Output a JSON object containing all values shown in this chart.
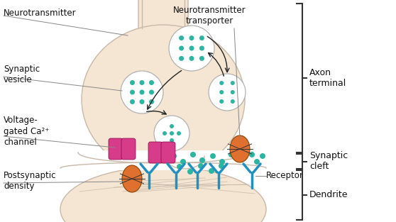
{
  "bg_color": "#ffffff",
  "axon_fill": "#f5e6d3",
  "axon_stroke": "#c8b8a8",
  "vesicle_fill": "#ffffff",
  "vesicle_stroke": "#aaaaaa",
  "dot_color": "#2cb5a0",
  "channel_color": "#d63c8a",
  "transporter_color": "#e07030",
  "receptor_color": "#2090c0",
  "arrow_color": "#222222",
  "label_color": "#111111",
  "bracket_color": "#333333",
  "line_color": "#bbbbbb",
  "labels": {
    "neurotransmitter": "Neurotransmitter",
    "synaptic_vesicle": "Synaptic\nvesicle",
    "voltage_gated": "Voltage-\ngated Ca²⁺\nchannel",
    "postsynaptic": "Postsynaptic\ndensity",
    "nt_transporter": "Neurotransmitter\ntransporter",
    "receptor": "Receptor",
    "axon_terminal": "Axon\nterminal",
    "synaptic_cleft": "Synaptic\ncleft",
    "dendrite": "Dendrite"
  },
  "figsize": [
    5.58,
    3.13
  ],
  "dpi": 100
}
